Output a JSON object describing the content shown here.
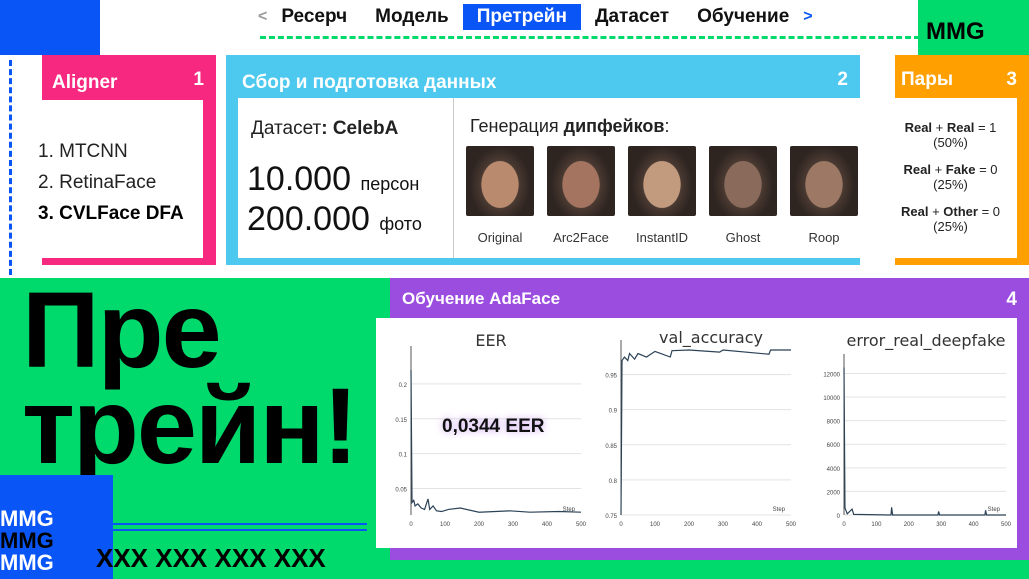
{
  "nav": {
    "items": [
      "Ресерч",
      "Модель",
      "Претрейн",
      "Датасет",
      "Обучение"
    ],
    "active": "Претрейн",
    "prev": "<",
    "next": ">"
  },
  "brand": {
    "logo": "MMG",
    "bottom_logo": [
      "MMG",
      "MMG",
      "MMG"
    ],
    "xxx": "XXX XXX XXX XXX"
  },
  "colors": {
    "blue": "#0a55f5",
    "green": "#00d96b",
    "pink": "#f7287f",
    "cyan": "#4dc8ee",
    "orange": "#ffa000",
    "purple": "#9b4de0"
  },
  "aligner": {
    "title": "Aligner",
    "num": "1",
    "items": [
      "1. MTCNN",
      "2. RetinaFace",
      "3. CVLFace DFA"
    ]
  },
  "data": {
    "title": "Сбор и подготовка данных",
    "num": "2",
    "dataset_label": "Датасет",
    "dataset_name": ": CelebA",
    "persons_n": "10.000",
    "persons_label": "персон",
    "photos_n": "200.000",
    "photos_label": "фото",
    "gen_label": "Генерация ",
    "gen_bold": "дипфейков",
    "gen_colon": ":",
    "faces": [
      "Original",
      "Arc2Face",
      "InstantID",
      "Ghost",
      "Roop"
    ]
  },
  "pairs": {
    "title": "Пары",
    "num": "3",
    "rows": [
      {
        "a": "Real",
        "b": "Real",
        "v": "= 1",
        "p": "(50%)"
      },
      {
        "a": "Real",
        "b": "Fake",
        "v": "= 0",
        "p": "(25%)"
      },
      {
        "a": "Real",
        "b": "Other",
        "v": "= 0",
        "p": "(25%)"
      }
    ]
  },
  "big": {
    "line1": "Пре",
    "line2": "трейн!"
  },
  "training": {
    "title": "Обучение AdaFace",
    "num": "4",
    "eer_badge": "0,0344 EER"
  },
  "chart_data": [
    {
      "type": "line",
      "title": "EER",
      "xlabel": "Step",
      "xlim": [
        0,
        500
      ],
      "ylim": [
        0.012,
        0.24
      ],
      "yticks": [
        0.05,
        0.1,
        0.15,
        0.2
      ],
      "xticks": [
        0,
        100,
        200,
        300,
        400,
        500
      ],
      "grid": true,
      "x": [
        0,
        3,
        8,
        12,
        20,
        30,
        40,
        50,
        55,
        65,
        75,
        90,
        110,
        145,
        200,
        290,
        350,
        435,
        500
      ],
      "y": [
        0.22,
        0.03,
        0.033,
        0.025,
        0.028,
        0.022,
        0.02,
        0.035,
        0.02,
        0.025,
        0.018,
        0.017,
        0.02,
        0.022,
        0.016,
        0.018,
        0.016,
        0.017,
        0.016
      ]
    },
    {
      "type": "line",
      "title": "val_accuracy",
      "xlabel": "Step",
      "xlim": [
        0,
        500
      ],
      "ylim": [
        0.75,
        0.985
      ],
      "yticks": [
        0.75,
        0.8,
        0.85,
        0.9,
        0.95
      ],
      "xticks": [
        0,
        100,
        200,
        300,
        400,
        500
      ],
      "grid": true,
      "x": [
        0,
        3,
        10,
        20,
        25,
        40,
        50,
        75,
        100,
        145,
        150,
        200,
        290,
        300,
        435,
        440,
        500
      ],
      "y": [
        0.75,
        0.97,
        0.975,
        0.97,
        0.98,
        0.972,
        0.98,
        0.975,
        0.983,
        0.975,
        0.984,
        0.985,
        0.982,
        0.985,
        0.979,
        0.985,
        0.985
      ]
    },
    {
      "type": "line",
      "title": "error_real_deepfake",
      "xlabel": "Step",
      "xlim": [
        0,
        500
      ],
      "ylim": [
        0,
        12800
      ],
      "yticks": [
        0,
        2000,
        4000,
        6000,
        8000,
        10000,
        12000
      ],
      "xticks": [
        0,
        100,
        200,
        300,
        400,
        500
      ],
      "grid": true,
      "x": [
        0,
        3,
        10,
        25,
        30,
        145,
        147,
        150,
        290,
        292,
        295,
        435,
        437,
        440,
        500
      ],
      "y": [
        12500,
        600,
        100,
        500,
        50,
        0,
        650,
        0,
        0,
        300,
        0,
        0,
        400,
        0,
        0
      ]
    }
  ]
}
